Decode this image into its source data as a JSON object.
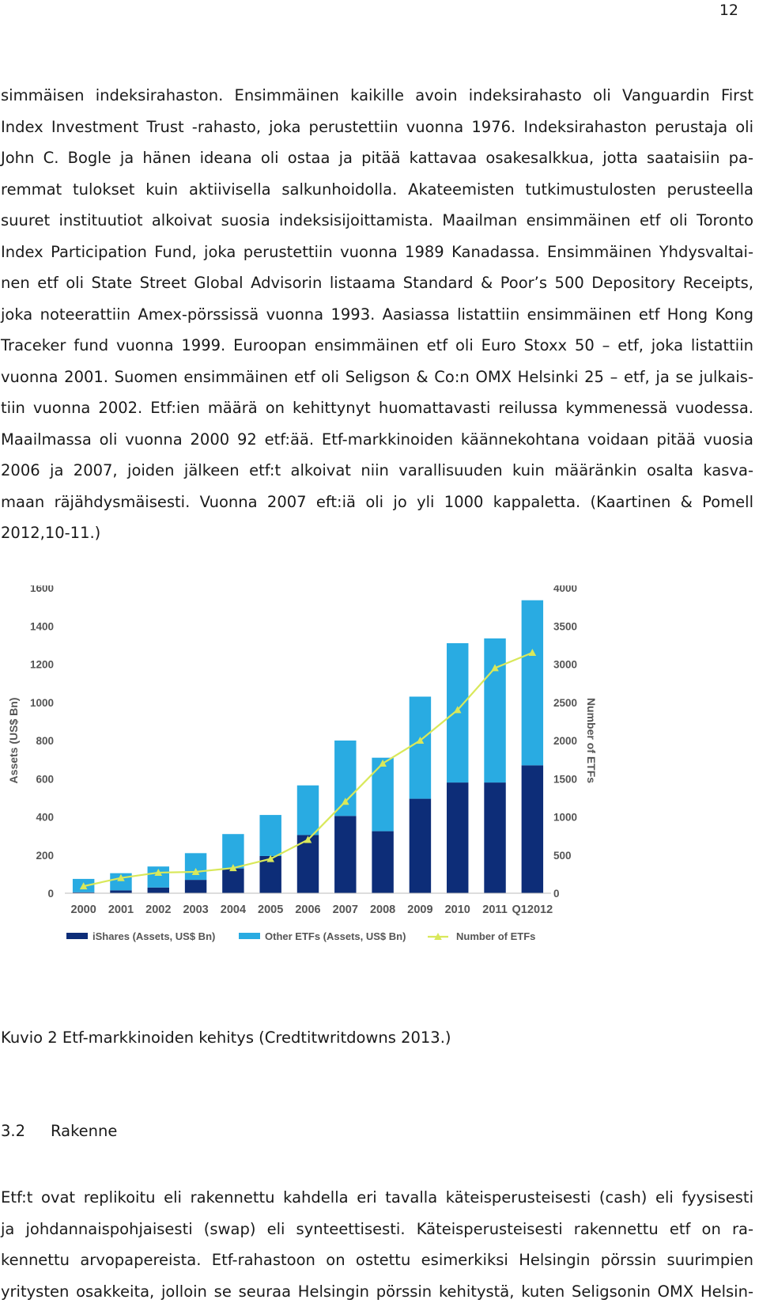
{
  "page_number": "12",
  "paragraph1_lines": [
    "simmäisen indeksirahaston. Ensimmäinen kaikille avoin indeksirahasto oli Vanguardin First",
    "Index Investment Trust -rahasto, joka perustettiin vuonna 1976. Indeksirahaston perustaja oli",
    "John C. Bogle ja hänen ideana oli ostaa ja pitää kattavaa osakesalkkua, jotta saataisiin pa-",
    "remmat tulokset kuin aktiivisella salkunhoidolla. Akateemisten tutkimustulosten perusteella",
    "suuret instituutiot alkoivat suosia indeksisijoittamista. Maailman ensimmäinen etf oli Toronto",
    "Index Participation Fund, joka perustettiin vuonna 1989 Kanadassa. Ensimmäinen Yhdysvaltai-",
    "nen etf oli State Street Global Advisorin listaama Standard & Poor’s 500 Depository Receipts,",
    "joka noteerattiin Amex-pörssissä vuonna 1993. Aasiassa listattiin ensimmäinen etf Hong Kong",
    "Traceker fund vuonna 1999. Euroopan ensimmäinen etf oli Euro Stoxx 50 – etf, joka listattiin",
    "vuonna 2001. Suomen ensimmäinen etf oli Seligson & Co:n OMX Helsinki 25 – etf, ja se julkais-",
    "tiin vuonna 2002. Etf:ien määrä on kehittynyt huomattavasti reilussa kymmenessä vuodessa.",
    "Maailmassa oli vuonna 2000 92 etf:ää. Etf-markkinoiden käännekohtana voidaan pitää vuosia",
    "2006 ja 2007, joiden jälkeen etf:t alkoivat niin varallisuuden kuin määränkin osalta kasva-",
    "maan räjähdysmäisesti. Vuonna 2007 eft:iä oli jo yli 1000 kappaletta. (Kaartinen & Pomell",
    "2012,10-11.)"
  ],
  "chart_data": {
    "type": "bar",
    "stacked": true,
    "categories": [
      "2000",
      "2001",
      "2002",
      "2003",
      "2004",
      "2005",
      "2006",
      "2007",
      "2008",
      "2009",
      "2010",
      "2011",
      "Q12012"
    ],
    "series": [
      {
        "name": "iShares (Assets, US$ Bn)",
        "type": "bar",
        "axis": "left",
        "color": "#0d2d78",
        "values": [
          5,
          15,
          30,
          70,
          130,
          195,
          305,
          405,
          325,
          495,
          580,
          580,
          670
        ]
      },
      {
        "name": "Other ETFs (Assets, US$ Bn)",
        "type": "bar",
        "axis": "left",
        "color": "#29abe2",
        "values": [
          70,
          90,
          110,
          140,
          180,
          215,
          260,
          395,
          385,
          535,
          730,
          755,
          865
        ]
      },
      {
        "name": "Number of ETFs",
        "type": "line",
        "axis": "right",
        "color": "#d9e85a",
        "values": [
          92,
          200,
          270,
          280,
          330,
          450,
          700,
          1200,
          1700,
          2000,
          2400,
          2950,
          3150
        ]
      }
    ],
    "ylabel": "Assets (US$ Bn)",
    "ylim": [
      0,
      1600
    ],
    "yticks": [
      0,
      200,
      400,
      600,
      800,
      1000,
      1200,
      1400,
      1600
    ],
    "y2label": "Number of ETFs",
    "y2lim": [
      0,
      4000
    ],
    "y2ticks": [
      0,
      500,
      1000,
      1500,
      2000,
      2500,
      3000,
      3500,
      4000
    ],
    "legend_position": "bottom",
    "grid": false
  },
  "caption": "Kuvio 2 Etf-markkinoiden kehitys (Credtitwritdowns 2013.)",
  "section": {
    "number": "3.2",
    "title": "Rakenne"
  },
  "paragraph2_lines": [
    "Etf:t ovat replikoitu eli rakennettu kahdella eri tavalla käteisperusteisesti (cash) eli fyysisesti",
    "ja johdannaispohjaisesti (swap) eli synteettisesti. Käteisperusteisesti rakennettu etf on ra-",
    "kennettu arvopapereista. Etf-rahastoon on ostettu esimerkiksi Helsingin pörssin suurimpien",
    "yritysten osakkeita, jolloin se seuraa Helsingin pörssin kehitystä, kuten Seligsonin OMX Helsin-"
  ]
}
